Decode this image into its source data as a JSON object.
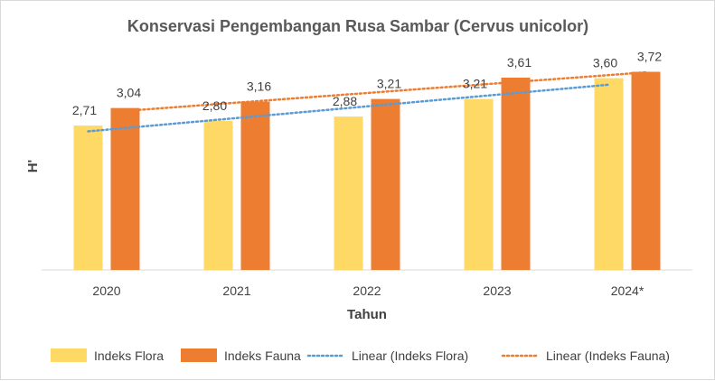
{
  "chart_data": {
    "type": "bar",
    "title": "Konservasi Pengembangan Rusa Sambar (Cervus unicolor)",
    "xlabel": "Tahun",
    "ylabel": "H'",
    "categories": [
      "2020",
      "2021",
      "2022",
      "2023",
      "2024*"
    ],
    "series": [
      {
        "name": "Indeks Flora",
        "values": [
          2.71,
          2.8,
          2.88,
          3.21,
          3.6
        ],
        "labels": [
          "2,71",
          "2,80",
          "2,88",
          "3,21",
          "3,60"
        ],
        "color": "#FFD966"
      },
      {
        "name": "Indeks Fauna",
        "values": [
          3.04,
          3.16,
          3.21,
          3.61,
          3.72
        ],
        "labels": [
          "3,04",
          "3,16",
          "3,21",
          "3,61",
          "3,72"
        ],
        "color": "#ED7D31"
      }
    ],
    "trendlines": [
      {
        "name": "Linear (Indeks Flora)",
        "type": "linear",
        "of": "Indeks Flora",
        "style": "dotted",
        "color": "#5B9BD5"
      },
      {
        "name": "Linear (Indeks Fauna)",
        "type": "linear",
        "of": "Indeks Fauna",
        "style": "dotted",
        "color": "#ED7D31"
      }
    ],
    "ylim": [
      0,
      4.0
    ],
    "grid": false,
    "legend_position": "bottom"
  }
}
